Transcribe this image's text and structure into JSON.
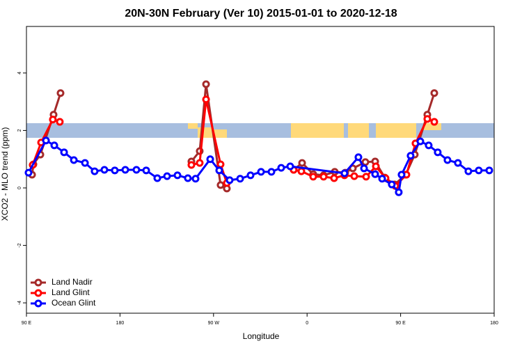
{
  "chart_data": {
    "type": "line",
    "title": "20N-30N February (Ver 10)   2015-01-01 to 2020-12-18",
    "x_label": "Longitude",
    "y_label": "XCO2 - MLO trend (ppm)",
    "xlim": [
      90,
      540
    ],
    "ylim": [
      -4.36,
      5.62
    ],
    "xticks": [
      {
        "value": 90,
        "label": "90 E"
      },
      {
        "value": 180,
        "label": "180"
      },
      {
        "value": 270,
        "label": "90 W"
      },
      {
        "value": 360,
        "label": "0"
      },
      {
        "value": 450,
        "label": "90 E"
      },
      {
        "value": 540,
        "label": "180"
      }
    ],
    "yticks": [
      4,
      2,
      0,
      -2,
      -4
    ],
    "legend": "bottom-left",
    "series": [
      {
        "name": "Land Nadir",
        "color": "#a52a2a",
        "x": [
          95.4,
          96.7,
          103.4,
          116.1,
          122.8,
          null,
          248.7,
          256.7,
          262.8,
          276.8,
          282.8,
          null,
          347.1,
          355.2,
          365.9,
          375.9,
          386.6,
          396.7,
          404.0,
          416.1,
          425.5,
          434.8,
          444.2,
          454.9,
          463.6,
          475.7,
          482.4
        ],
        "values": [
          0.46,
          0.82,
          1.16,
          2.55,
          3.3,
          null,
          0.92,
          1.28,
          3.61,
          0.1,
          -0.02,
          null,
          0.63,
          0.87,
          0.48,
          0.44,
          0.56,
          0.53,
          0.68,
          0.9,
          0.92,
          0.36,
          0.12,
          0.46,
          1.16,
          2.55,
          3.3
        ]
      },
      {
        "name": "Land Glint",
        "color": "#ff0000",
        "x": [
          96.0,
          104.1,
          115.4,
          122.1,
          null,
          248.7,
          256.7,
          262.8,
          276.8,
          282.8,
          null,
          347.1,
          354.5,
          365.9,
          375.9,
          386.0,
          396.0,
          405.4,
          416.8,
          426.2,
          435.5,
          444.9,
          455.6,
          464.3,
          475.7,
          482.4
        ],
        "values": [
          0.8,
          1.58,
          2.38,
          2.3,
          null,
          0.8,
          0.87,
          3.08,
          0.82,
          0.17,
          null,
          0.63,
          0.58,
          0.39,
          0.39,
          0.34,
          0.44,
          0.41,
          0.39,
          0.75,
          0.34,
          0.07,
          0.46,
          1.55,
          2.4,
          2.3
        ]
      },
      {
        "name": "Ocean Glint",
        "color": "#0000ff",
        "x": [
          92.0,
          108.8,
          116.8,
          126.2,
          135.6,
          146.3,
          155.6,
          165.0,
          175.0,
          185.1,
          195.8,
          205.2,
          215.9,
          225.3,
          235.3,
          245.3,
          252.7,
          266.8,
          275.5,
          285.5,
          295.6,
          305.6,
          315.7,
          325.7,
          335.1,
          343.8,
          396.0,
          409.4,
          414.8,
          425.5,
          432.2,
          441.5,
          448.2,
          450.9,
          459.6,
          469.0,
          477.0,
          485.7,
          495.1,
          505.1,
          515.2,
          525.2,
          535.3
        ],
        "values": [
          0.53,
          1.65,
          1.48,
          1.24,
          0.97,
          0.87,
          0.58,
          0.63,
          0.61,
          0.63,
          0.63,
          0.61,
          0.34,
          0.41,
          0.44,
          0.34,
          0.32,
          1.0,
          0.61,
          0.27,
          0.32,
          0.44,
          0.56,
          0.56,
          0.7,
          0.75,
          0.51,
          1.07,
          0.68,
          0.48,
          0.32,
          0.12,
          -0.15,
          0.46,
          1.12,
          1.62,
          1.48,
          1.24,
          0.97,
          0.87,
          0.58,
          0.61,
          0.61
        ]
      }
    ]
  }
}
